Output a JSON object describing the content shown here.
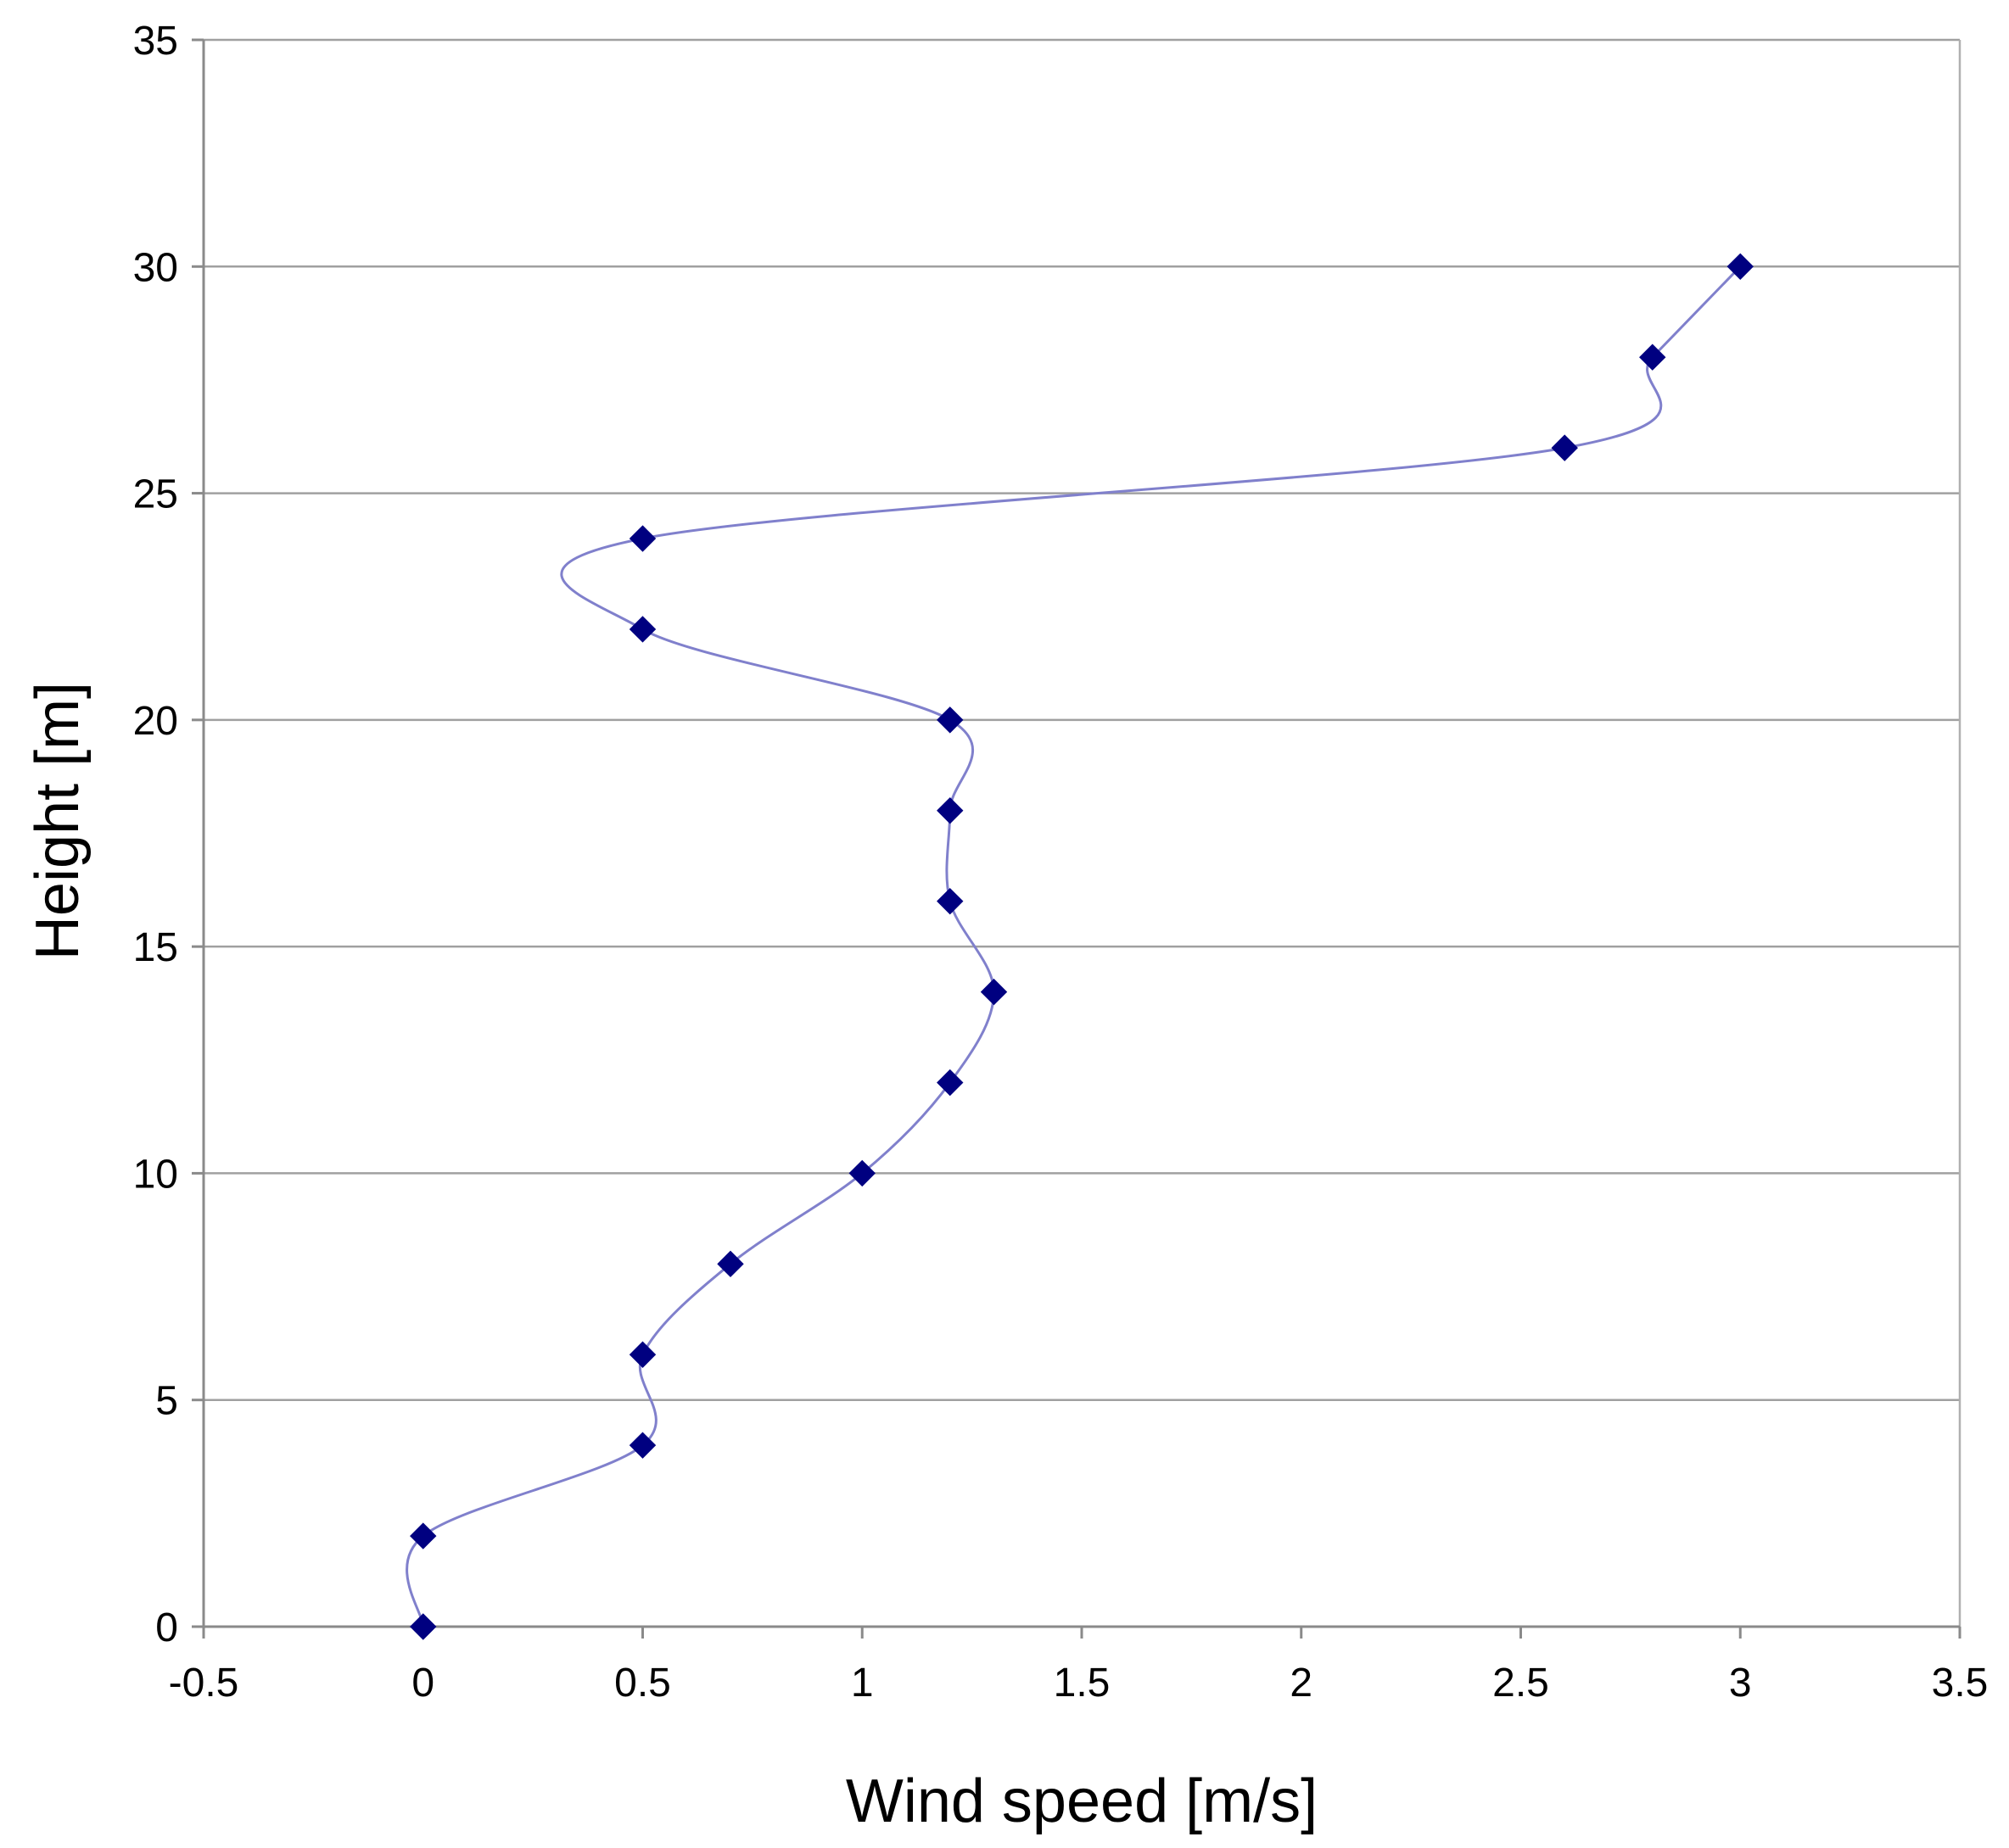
{
  "chart_data": {
    "type": "line",
    "title": "",
    "xlabel": "Wind speed [m/s]",
    "ylabel": "Height [m]",
    "xlim": [
      -0.5,
      3.5
    ],
    "ylim": [
      0,
      35
    ],
    "x_ticks": [
      -0.5,
      0,
      0.5,
      1,
      1.5,
      2,
      2.5,
      3,
      3.5
    ],
    "x_tick_labels": [
      "-0.5",
      "0",
      "0.5",
      "1",
      "1.5",
      "2",
      "2.5",
      "3",
      "3.5"
    ],
    "y_ticks": [
      0,
      5,
      10,
      15,
      20,
      25,
      30,
      35
    ],
    "y_tick_labels": [
      "0",
      "5",
      "10",
      "15",
      "20",
      "25",
      "30",
      "35"
    ],
    "grid": "horizontal",
    "legend": "none",
    "line_style": "smoothed",
    "series": [
      {
        "x": [
          0,
          0,
          0.5,
          0.5,
          0.7,
          1.0,
          1.2,
          1.3,
          1.2,
          1.2,
          1.2,
          0.5,
          0.5,
          2.6,
          2.8,
          3.0
        ],
        "y": [
          0,
          2,
          4,
          6,
          8,
          10,
          12,
          14,
          16,
          18,
          20,
          22,
          24,
          26,
          28,
          30
        ],
        "line_color": "#8080cc",
        "marker": "diamond",
        "marker_color": "#000080"
      }
    ]
  }
}
